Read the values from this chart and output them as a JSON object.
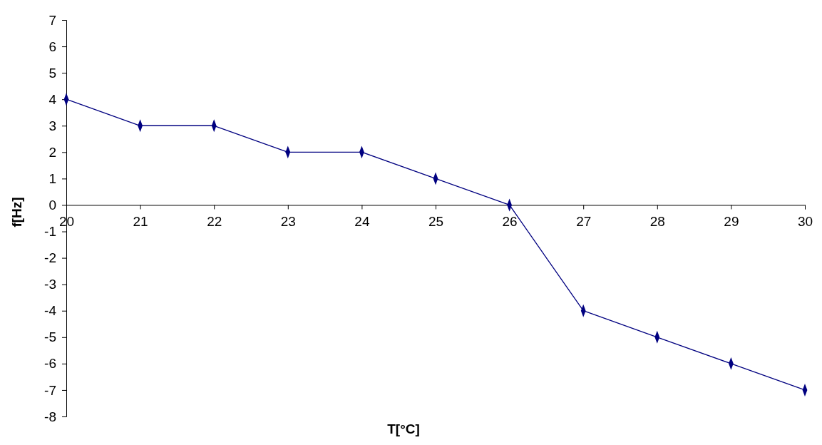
{
  "chart_data": {
    "type": "line",
    "xlabel": "T[°C]",
    "ylabel": "f[Hz]",
    "x": [
      20,
      21,
      22,
      23,
      24,
      25,
      26,
      27,
      28,
      29,
      30
    ],
    "series": [
      {
        "color": "#000080",
        "values": [
          4,
          3,
          3,
          2,
          2,
          1,
          0,
          -4,
          -5,
          -6,
          -7
        ]
      }
    ],
    "xlim": [
      20,
      30
    ],
    "xticks": [
      20,
      21,
      22,
      23,
      24,
      25,
      26,
      27,
      28,
      29,
      30
    ],
    "ylim": [
      -8,
      7
    ],
    "yticks": [
      -8,
      -7,
      -6,
      -5,
      -4,
      -3,
      -2,
      -1,
      0,
      1,
      2,
      3,
      4,
      5,
      6,
      7
    ],
    "marker": "diamond",
    "line_style": "solid"
  }
}
